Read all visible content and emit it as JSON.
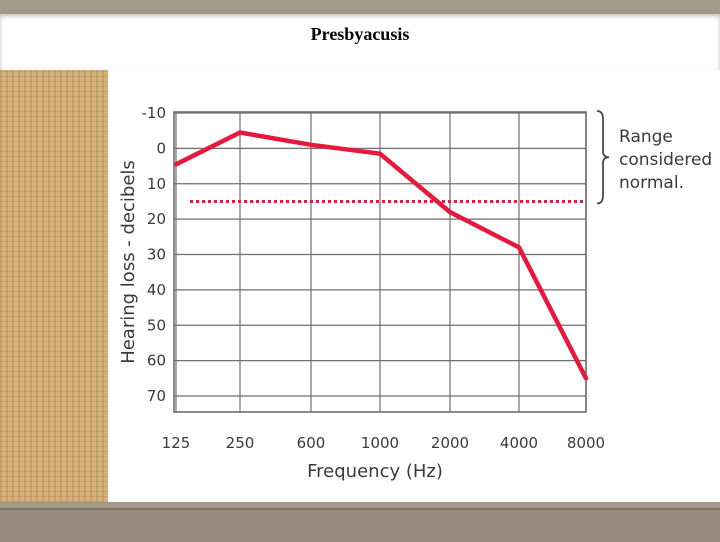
{
  "slide": {
    "title": "Presbyacusis"
  },
  "chart_data": {
    "type": "line",
    "title": "",
    "xlabel": "Frequency (Hz)",
    "ylabel": "Hearing loss - decibels",
    "categories": [
      "125",
      "250",
      "600",
      "1000",
      "2000",
      "4000",
      "8000"
    ],
    "x_extended_left": true,
    "y_ticks": [
      -10,
      0,
      10,
      20,
      30,
      40,
      50,
      60,
      70
    ],
    "ylim": [
      -10,
      70
    ],
    "y_inverted": true,
    "grid": true,
    "series": [
      {
        "color": "#e8173c",
        "values": [
          4.5,
          -4.5,
          -1,
          1.5,
          18,
          28,
          65
        ]
      }
    ],
    "reference_line": {
      "value": 15,
      "style": "dotted",
      "color": "#e8173c"
    },
    "annotation": {
      "lines": [
        "Range",
        "considered",
        "normal."
      ],
      "range": [
        -10,
        15
      ],
      "bracket": "right"
    },
    "colors": {
      "line": "#e8173c",
      "grid": "#6f6f6f",
      "text": "#3a3a3a"
    }
  }
}
